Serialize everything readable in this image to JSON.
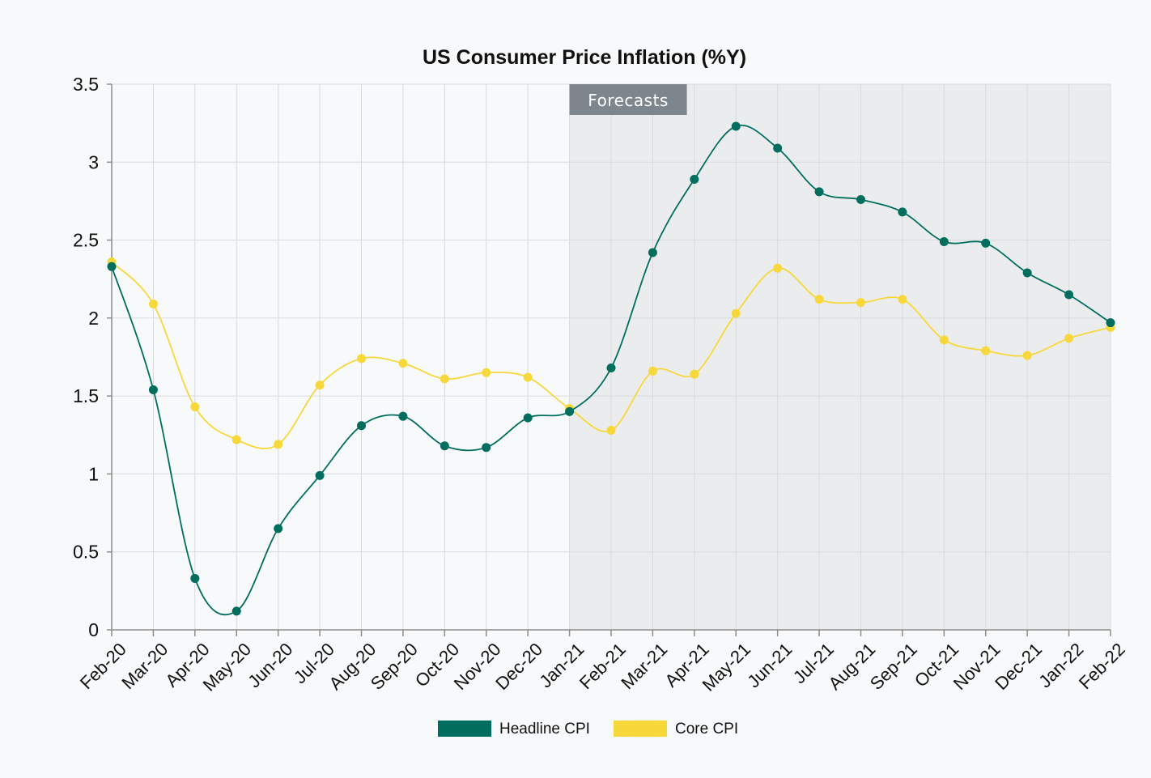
{
  "chart_data": {
    "type": "line",
    "title": "US Consumer Price Inflation (%Y)",
    "xlabel": "",
    "ylabel": "",
    "categories": [
      "Feb-20",
      "Mar-20",
      "Apr-20",
      "May-20",
      "Jun-20",
      "Jul-20",
      "Aug-20",
      "Sep-20",
      "Oct-20",
      "Nov-20",
      "Dec-20",
      "Jan-21",
      "Feb-21",
      "Mar-21",
      "Apr-21",
      "May-21",
      "Jun-21",
      "Jul-21",
      "Aug-21",
      "Sep-21",
      "Oct-21",
      "Nov-21",
      "Dec-21",
      "Jan-22",
      "Feb-22"
    ],
    "ylim": [
      0,
      3.5
    ],
    "yticks": [
      0,
      0.5,
      1,
      1.5,
      2,
      2.5,
      3,
      3.5
    ],
    "ytick_labels": [
      "0",
      "0.5",
      "1",
      "1.5",
      "2",
      "2.5",
      "3",
      "3.5"
    ],
    "grid": true,
    "legend_position": "bottom",
    "forecast_region": {
      "label": "Forecasts",
      "start": "Jan-21",
      "end": "Feb-22",
      "fill_color": "#ebecee",
      "label_bg_color": "#7d868c"
    },
    "series": [
      {
        "name": "Headline CPI",
        "color": "#006e5f",
        "values": [
          2.33,
          1.54,
          0.33,
          0.12,
          0.65,
          0.99,
          1.31,
          1.37,
          1.18,
          1.17,
          1.36,
          1.4,
          1.68,
          2.42,
          2.89,
          3.23,
          3.09,
          2.81,
          2.76,
          2.68,
          2.49,
          2.48,
          2.29,
          2.15,
          1.97
        ]
      },
      {
        "name": "Core CPI",
        "color": "#f7d83b",
        "values": [
          2.36,
          2.09,
          1.43,
          1.22,
          1.19,
          1.57,
          1.74,
          1.71,
          1.61,
          1.65,
          1.62,
          1.42,
          1.28,
          1.66,
          1.64,
          2.03,
          2.32,
          2.12,
          2.1,
          2.12,
          1.86,
          1.79,
          1.76,
          1.87,
          1.94
        ]
      }
    ]
  }
}
